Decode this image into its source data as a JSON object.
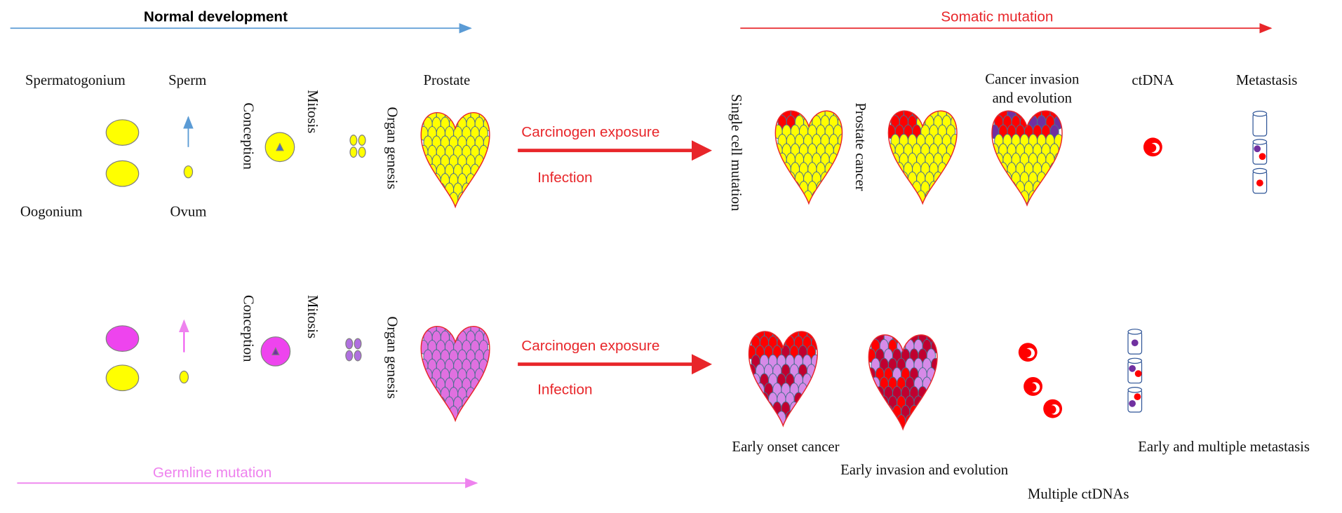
{
  "headers": {
    "normal": "Normal development",
    "somatic": "Somatic mutation",
    "germline": "Germline mutation"
  },
  "normal_row": {
    "spermatogonium": "Spermatogonium",
    "sperm": "Sperm",
    "oogonium": "Oogonium",
    "ovum": "Ovum",
    "conception": "Conception",
    "mitosis": "Mitosis",
    "organ_genesis": "Organ genesis",
    "prostate": "Prostate",
    "exposure": "Carcinogen exposure",
    "infection": "Infection",
    "single_cell": "Single cell mutation",
    "prostate_cancer": "Prostate cancer",
    "invasion": [
      "Cancer invasion",
      "and evolution"
    ],
    "ctdna": "ctDNA",
    "metastasis": "Metastasis"
  },
  "germline_row": {
    "conception": "Conception",
    "mitosis": "Mitosis",
    "organ_genesis": "Organ genesis",
    "exposure": "Carcinogen exposure",
    "infection": "Infection",
    "early_onset": "Early onset cancer",
    "early_invasion": "Early  invasion and evolution",
    "multiple_ctdna": "Multiple ctDNAs",
    "early_metastasis": "Early and multiple metastasis"
  }
}
